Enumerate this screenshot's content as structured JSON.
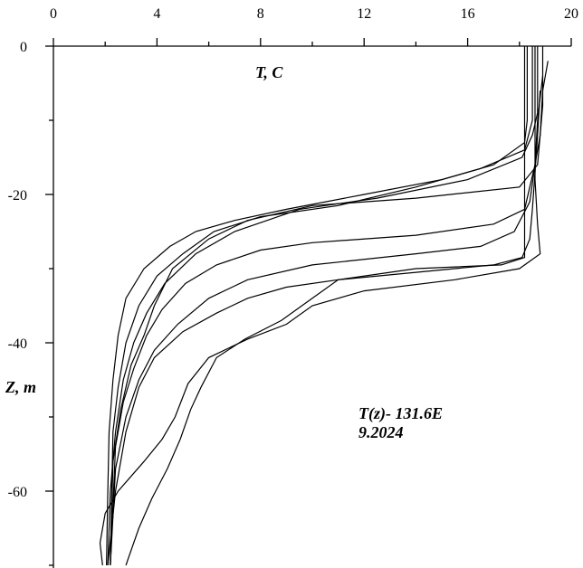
{
  "chart_data": {
    "type": "line",
    "title": "",
    "xlabel": "T, C",
    "ylabel": "Z, m",
    "xlim": [
      0,
      20
    ],
    "ylim": [
      -70,
      0
    ],
    "x_ticks": [
      "0",
      "4",
      "8",
      "12",
      "16",
      "20"
    ],
    "y_ticks": [
      "0",
      "-20",
      "-40",
      "-60"
    ],
    "grid": false,
    "annotations": [
      "T(z)- 131.6E",
      "9.2024"
    ],
    "series": [
      {
        "points": [
          [
            18.3,
            0
          ],
          [
            18.3,
            -10
          ],
          [
            18.2,
            -13
          ],
          [
            17,
            -16
          ],
          [
            15,
            -18
          ],
          [
            12,
            -20
          ],
          [
            9,
            -22
          ],
          [
            7,
            -23.5
          ],
          [
            5.5,
            -25
          ],
          [
            4.5,
            -27
          ],
          [
            3.5,
            -30
          ],
          [
            2.8,
            -34
          ],
          [
            2.5,
            -39
          ],
          [
            2.3,
            -45
          ],
          [
            2.15,
            -52
          ],
          [
            2.1,
            -60
          ],
          [
            2.05,
            -70
          ]
        ]
      },
      {
        "points": [
          [
            18.5,
            0
          ],
          [
            18.5,
            -10
          ],
          [
            18.2,
            -14
          ],
          [
            16.5,
            -16.5
          ],
          [
            14,
            -19
          ],
          [
            11,
            -21.5
          ],
          [
            8,
            -23
          ],
          [
            6.2,
            -25
          ],
          [
            5,
            -28
          ],
          [
            4,
            -31
          ],
          [
            3.3,
            -35
          ],
          [
            2.8,
            -40
          ],
          [
            2.5,
            -46
          ],
          [
            2.3,
            -52
          ],
          [
            2.2,
            -70
          ]
        ]
      },
      {
        "points": [
          [
            18.7,
            0
          ],
          [
            18.7,
            -9
          ],
          [
            18.5,
            -12
          ],
          [
            18.1,
            -15
          ],
          [
            16,
            -18
          ],
          [
            12.5,
            -20.5
          ],
          [
            9.5,
            -22
          ],
          [
            7,
            -25
          ],
          [
            5.5,
            -28
          ],
          [
            4.3,
            -32
          ],
          [
            3.6,
            -36
          ],
          [
            3.1,
            -40
          ],
          [
            2.7,
            -45
          ],
          [
            2.4,
            -52
          ],
          [
            2.2,
            -60
          ],
          [
            2.1,
            -70
          ]
        ]
      },
      {
        "points": [
          [
            18.9,
            0
          ],
          [
            18.9,
            -8
          ],
          [
            18.8,
            -12
          ],
          [
            18.7,
            -16
          ],
          [
            18,
            -19
          ],
          [
            14,
            -20.5
          ],
          [
            10,
            -21.5
          ],
          [
            7.5,
            -23.5
          ],
          [
            6,
            -26
          ],
          [
            4.6,
            -30
          ],
          [
            3.9,
            -35
          ],
          [
            3.5,
            -39
          ],
          [
            3,
            -43
          ],
          [
            2.6,
            -49
          ],
          [
            2.3,
            -56
          ],
          [
            2.2,
            -70
          ]
        ]
      },
      {
        "points": [
          [
            19.1,
            -2
          ],
          [
            18.9,
            -6
          ],
          [
            18.8,
            -12
          ],
          [
            18.6,
            -16
          ],
          [
            18.4,
            -19
          ],
          [
            18.2,
            -22
          ],
          [
            17,
            -24
          ],
          [
            14,
            -25.5
          ],
          [
            10,
            -26.5
          ],
          [
            8,
            -27.5
          ],
          [
            6.3,
            -29.5
          ],
          [
            5.1,
            -32
          ],
          [
            4.2,
            -35.5
          ],
          [
            3.6,
            -39
          ],
          [
            3.1,
            -43.5
          ],
          [
            2.7,
            -48
          ],
          [
            2.4,
            -54
          ],
          [
            2.2,
            -70
          ]
        ]
      },
      {
        "points": [
          [
            18.9,
            -4
          ],
          [
            18.7,
            -10
          ],
          [
            18.6,
            -16
          ],
          [
            18.4,
            -21
          ],
          [
            17.8,
            -25
          ],
          [
            16.5,
            -27
          ],
          [
            14,
            -28
          ],
          [
            10,
            -29.5
          ],
          [
            7.5,
            -31.5
          ],
          [
            6,
            -34
          ],
          [
            4.8,
            -37.5
          ],
          [
            3.9,
            -41
          ],
          [
            3.3,
            -45
          ],
          [
            2.8,
            -50
          ],
          [
            2.4,
            -57
          ],
          [
            2.2,
            -70
          ]
        ]
      },
      {
        "points": [
          [
            18.8,
            -6
          ],
          [
            18.7,
            -12
          ],
          [
            18.6,
            -17
          ],
          [
            18.5,
            -22
          ],
          [
            18.4,
            -26
          ],
          [
            18.1,
            -28.5
          ],
          [
            17,
            -29.5
          ],
          [
            14,
            -30.5
          ],
          [
            11,
            -31.5
          ],
          [
            9,
            -32.5
          ],
          [
            7.5,
            -34
          ],
          [
            6.3,
            -36
          ],
          [
            5,
            -38.5
          ],
          [
            3.9,
            -42
          ],
          [
            3.3,
            -46
          ],
          [
            2.8,
            -52
          ],
          [
            2.4,
            -60
          ],
          [
            2.1,
            -70
          ]
        ]
      },
      {
        "points": [
          [
            18.6,
            0
          ],
          [
            18.6,
            -10
          ],
          [
            18.6,
            -18
          ],
          [
            18.7,
            -24
          ],
          [
            18.8,
            -28
          ],
          [
            18,
            -30
          ],
          [
            15.5,
            -31.5
          ],
          [
            12,
            -33
          ],
          [
            10,
            -35
          ],
          [
            9,
            -37.5
          ],
          [
            7.5,
            -39.5
          ],
          [
            6,
            -42
          ],
          [
            5.2,
            -45.5
          ],
          [
            4.7,
            -50
          ],
          [
            4.2,
            -53
          ],
          [
            3.5,
            -56
          ],
          [
            2.5,
            -60
          ],
          [
            2,
            -63
          ],
          [
            1.8,
            -67
          ],
          [
            1.9,
            -70
          ]
        ]
      },
      {
        "points": [
          [
            18.2,
            0
          ],
          [
            18.2,
            -10
          ],
          [
            18.2,
            -20
          ],
          [
            18.2,
            -28.5
          ],
          [
            17.3,
            -29.5
          ],
          [
            14,
            -30
          ],
          [
            11,
            -31.5
          ],
          [
            10,
            -34
          ],
          [
            8.8,
            -37
          ],
          [
            7.4,
            -39.5
          ],
          [
            6.3,
            -42
          ],
          [
            5.7,
            -46
          ],
          [
            5.3,
            -49
          ],
          [
            4.9,
            -53
          ],
          [
            4.4,
            -57
          ],
          [
            3.8,
            -61
          ],
          [
            3.3,
            -65
          ],
          [
            2.9,
            -69
          ],
          [
            2.8,
            -70
          ]
        ]
      }
    ]
  }
}
